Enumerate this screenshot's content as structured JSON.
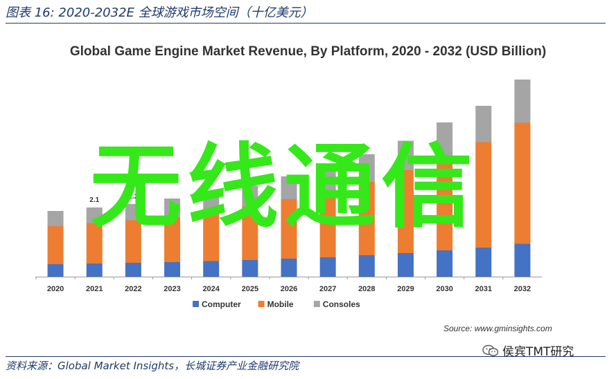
{
  "figure": {
    "title": "图表 16:  2020-2032E 全球游戏市场空间（十亿美元）",
    "footnote": "资料来源：Global Market Insights，长城证券产业金融研究院"
  },
  "watermark": {
    "overlay_text": "无线通信",
    "account": "侯宾TMT研究",
    "logo_icon": "wechat-icon"
  },
  "chart_data": {
    "type": "bar",
    "stacked": true,
    "title": "Global Game Engine Market Revenue, By Platform, 2020 - 2032 (USD Billion)",
    "source": "Source: www.gminsights.com",
    "categories": [
      "2020",
      "2021",
      "2022",
      "2023",
      "2024",
      "2025",
      "2026",
      "2027",
      "2028",
      "2029",
      "2030",
      "2031",
      "2032"
    ],
    "series": [
      {
        "name": "Computer",
        "color": "#4472c4",
        "values": [
          0.36,
          0.38,
          0.4,
          0.42,
          0.45,
          0.48,
          0.52,
          0.56,
          0.62,
          0.68,
          0.76,
          0.84,
          0.95
        ]
      },
      {
        "name": "Mobile",
        "color": "#ed7d31",
        "values": [
          1.1,
          1.17,
          1.23,
          1.3,
          1.37,
          1.55,
          1.72,
          1.92,
          2.12,
          2.4,
          2.75,
          3.05,
          3.5
        ]
      },
      {
        "name": "Consoles",
        "color": "#a5a5a5",
        "values": [
          0.44,
          0.45,
          0.47,
          0.54,
          0.55,
          0.6,
          0.66,
          0.71,
          0.8,
          0.85,
          0.95,
          1.05,
          1.25
        ]
      }
    ],
    "data_labels": {
      "2021": "2.1",
      "2022": "2.2"
    },
    "legend": "bottom",
    "grid": false,
    "ylim": [
      0,
      6
    ]
  }
}
